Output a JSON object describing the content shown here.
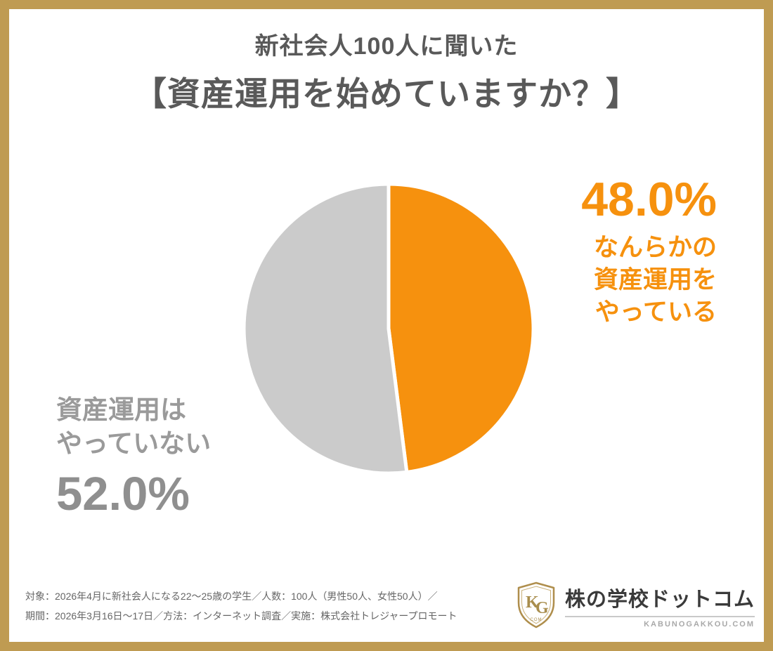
{
  "page": {
    "frame_color": "#BF9B52"
  },
  "header": {
    "title_line1": "新社会人100人に聞いた",
    "title_line2": "【資産運用を始めていますか？】"
  },
  "chart_data": {
    "type": "pie",
    "title": "新社会人100人に聞いた【資産運用を始めていますか？】",
    "unit": "%",
    "slices": [
      {
        "label": "なんらかの資産運用をやっている",
        "value": 48.0,
        "color": "#F6910E"
      },
      {
        "label": "資産運用はやっていない",
        "value": 52.0,
        "color": "#CBCBCB"
      }
    ],
    "start_angle_deg": 0,
    "direction": "clockwise",
    "gap_stroke_color": "#FFFFFF",
    "legend": "none"
  },
  "callouts": {
    "yes": {
      "pct": "48.0%",
      "line1": "なんらかの",
      "line2": "資産運用を",
      "line3": "やっている"
    },
    "no": {
      "line1": "資産運用は",
      "line2": "やっていない",
      "pct": "52.0%"
    }
  },
  "footer": {
    "note_line1": "対象：2026年4月に新社会人になる22〜25歳の学生／人数：100人（男性50人、女性50人）／",
    "note_line2": "期間：2026年3月16日〜17日／方法：インターネット調査／実施：株式会社トレジャープロモート",
    "logo": {
      "name": "株の学校ドットコム",
      "domain": "KABUNOGAKKOU.COM",
      "monogram_k": "K",
      "monogram_g": "G",
      "monogram_com": "COM"
    }
  }
}
